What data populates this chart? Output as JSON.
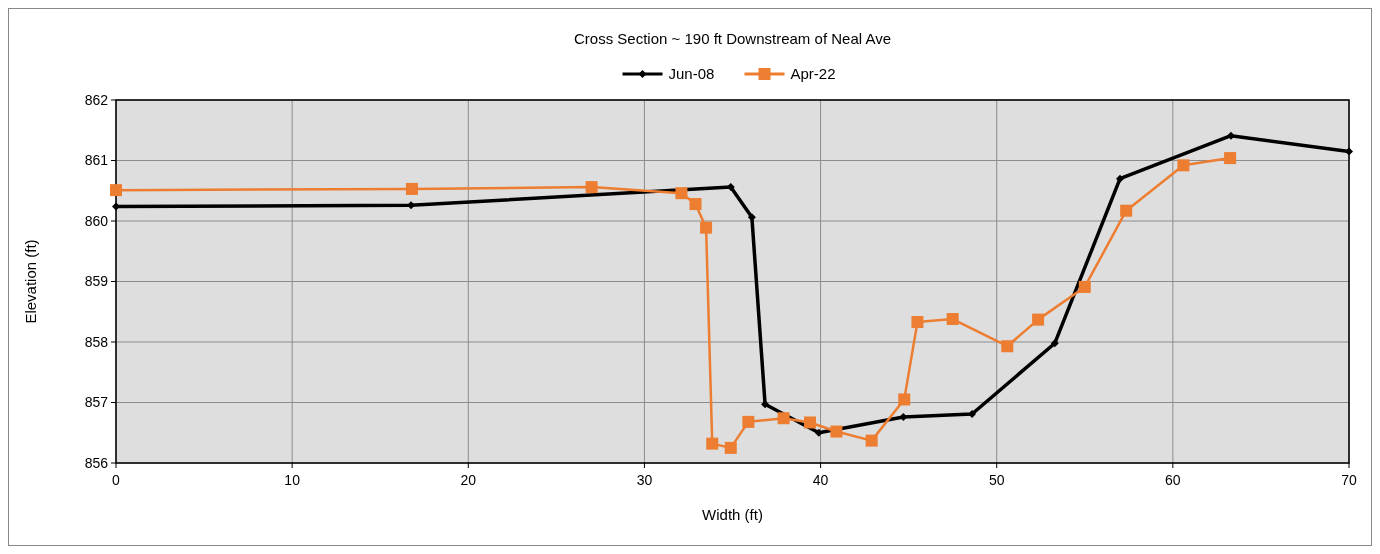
{
  "chart_data": {
    "type": "line",
    "title": "Cross Section ~ 190 ft Downstream of Neal Ave",
    "xlabel": "Width (ft)",
    "ylabel": "Elevation (ft)",
    "xlim": [
      0,
      70
    ],
    "xticks": [
      0,
      10,
      20,
      30,
      40,
      50,
      60,
      70
    ],
    "ylim": [
      856,
      862
    ],
    "yticks": [
      856,
      857,
      858,
      859,
      860,
      861,
      862
    ],
    "grid": true,
    "legend": "top",
    "series": [
      {
        "name": "Jun-08",
        "color": "#000000",
        "marker": "diamond",
        "x": [
          0,
          16.75,
          34.9,
          36.1,
          36.85,
          39.9,
          44.7,
          48.6,
          53.3,
          57.0,
          63.3,
          70
        ],
        "values": [
          860.24,
          860.26,
          860.56,
          860.06,
          856.97,
          856.5,
          856.76,
          856.81,
          857.98,
          860.7,
          861.41,
          861.15
        ]
      },
      {
        "name": "Apr-22",
        "color": "#ed7d31",
        "marker": "square",
        "x": [
          0,
          16.8,
          27.0,
          32.1,
          32.9,
          33.5,
          33.85,
          34.9,
          35.9,
          37.9,
          39.4,
          40.9,
          42.9,
          44.75,
          45.5,
          47.5,
          50.6,
          52.35,
          55.0,
          57.35,
          60.6,
          63.25
        ],
        "values": [
          860.51,
          860.53,
          860.56,
          860.46,
          860.28,
          859.89,
          856.32,
          856.25,
          856.68,
          856.74,
          856.67,
          856.52,
          856.37,
          857.05,
          858.33,
          858.38,
          857.93,
          858.37,
          858.91,
          860.17,
          860.92,
          861.04
        ]
      }
    ]
  }
}
